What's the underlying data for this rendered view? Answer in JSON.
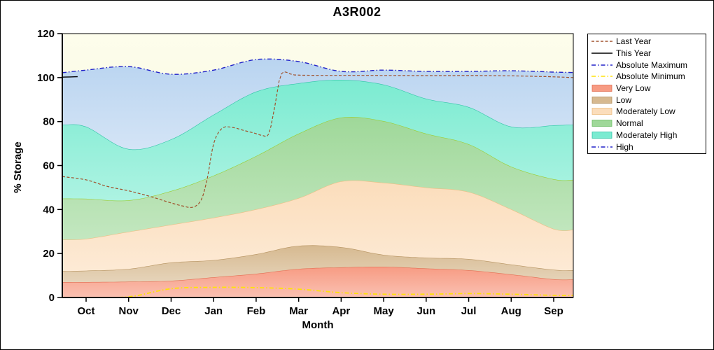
{
  "chart_data": {
    "type": "area",
    "title": "A3R002",
    "xlabel": "Month",
    "ylabel": "% Storage",
    "ylim": [
      0,
      120
    ],
    "yticks": [
      0,
      20,
      40,
      60,
      80,
      100,
      120
    ],
    "categories": [
      "Oct",
      "Nov",
      "Dec",
      "Jan",
      "Feb",
      "Mar",
      "Apr",
      "May",
      "Jun",
      "Jul",
      "Aug",
      "Sep"
    ],
    "plot_bg_top": "#FDFDEC",
    "plot_bg_bottom": "#F5F5D2",
    "band_x": [
      -0.56,
      0,
      1,
      2,
      3,
      4,
      5,
      6,
      7,
      8,
      9,
      10,
      11,
      11.46
    ],
    "bands": [
      {
        "name": "Very Low",
        "fill": "#F79B83",
        "edge": "#E26E52",
        "top": [
          7,
          7,
          7.2,
          7.6,
          9.2,
          10.8,
          13,
          13.7,
          14,
          13.2,
          12.4,
          10.5,
          8.3,
          8.2
        ]
      },
      {
        "name": "Low",
        "fill": "#D6B990",
        "edge": "#B5925F",
        "top": [
          12,
          12.2,
          13,
          15.9,
          17,
          19.7,
          23.5,
          22.9,
          19.4,
          18.1,
          17.5,
          15,
          12.6,
          12.4
        ]
      },
      {
        "name": "Moderately Low",
        "fill": "#FBDDBB",
        "edge": "#EDBE84",
        "top": [
          26.3,
          26.7,
          29.9,
          33.1,
          36.3,
          40.1,
          45.2,
          52.8,
          52.2,
          50,
          48,
          40.1,
          31.2,
          30.8
        ]
      },
      {
        "name": "Normal",
        "fill": "#9FD899",
        "edge": "#9ACD32",
        "top": [
          45,
          44.9,
          44.2,
          48.4,
          55.4,
          64.3,
          74.5,
          81.8,
          80.2,
          74.5,
          69.7,
          59.5,
          53.8,
          53.5
        ]
      },
      {
        "name": "Moderately High",
        "fill": "#7BEBD1",
        "edge": "#2FC3A6",
        "top": [
          78.5,
          77.7,
          67.5,
          71.9,
          83.1,
          93.6,
          97.4,
          99,
          96.8,
          90.4,
          86.6,
          77.7,
          78.3,
          78.6
        ]
      },
      {
        "name": "High",
        "fill": "#B9D4F0",
        "edge": "none",
        "top": [
          102.2,
          103.4,
          105,
          101.5,
          103.4,
          108.2,
          107.3,
          102.8,
          103.4,
          102.8,
          102.8,
          103.1,
          102.5,
          102.3
        ]
      }
    ],
    "lines": [
      {
        "name": "Absolute Minimum",
        "color": "#FFE206",
        "dash": "6 3 1.5 3",
        "width": 1.8,
        "x": [
          -0.56,
          0,
          1,
          2,
          3,
          4,
          5,
          6,
          7,
          8,
          9,
          10,
          11,
          11.46
        ],
        "v": [
          0,
          0,
          0.3,
          4,
          4.6,
          4.5,
          3.8,
          2.2,
          1.5,
          1.5,
          1.8,
          1.5,
          1,
          1
        ]
      },
      {
        "name": "Last Year",
        "color": "#A0522D",
        "dash": "4 2.5",
        "width": 1.2,
        "x": [
          -0.56,
          0,
          0.5,
          1,
          1.5,
          2,
          2.3,
          2.5,
          2.7,
          2.85,
          3,
          3.2,
          3.45,
          3.7,
          3.95,
          4.15,
          4.3,
          4.45,
          4.6,
          4.9,
          5.5,
          6.5,
          8,
          9.5,
          10.7,
          11.46
        ],
        "v": [
          55,
          53.5,
          50.5,
          48.5,
          46,
          43,
          41.5,
          41,
          44,
          54,
          70,
          77,
          77.3,
          76,
          74.8,
          73.7,
          74.5,
          88,
          101.8,
          101.2,
          101,
          101,
          100.9,
          100.9,
          100.5,
          100
        ]
      },
      {
        "name": "This Year",
        "color": "#000000",
        "dash": "",
        "width": 1.4,
        "x": [
          -0.56,
          -0.2
        ],
        "v": [
          100.2,
          100.4
        ]
      },
      {
        "name": "Absolute Maximum",
        "color": "#2121C8",
        "dash": "6 3 1.5 3",
        "width": 1.4,
        "x": [
          -0.56,
          0,
          1,
          2,
          3,
          4,
          5,
          6,
          7,
          8,
          9,
          10,
          11,
          11.46
        ],
        "v": [
          102.2,
          103.4,
          105,
          101.5,
          103.4,
          108.2,
          107.3,
          102.8,
          103.4,
          102.8,
          102.8,
          103.1,
          102.5,
          102.3
        ]
      }
    ]
  },
  "legend": {
    "items": [
      {
        "label": "Last Year",
        "marker": "line",
        "color": "#A0522D",
        "dash": "4 2.5"
      },
      {
        "label": "This Year",
        "marker": "line",
        "color": "#000000",
        "dash": ""
      },
      {
        "label": "Absolute Maximum",
        "marker": "line",
        "color": "#2121C8",
        "dash": "6 3 1.5 3"
      },
      {
        "label": "Absolute Minimum",
        "marker": "line",
        "color": "#FFE206",
        "dash": "6 3 1.5 3"
      },
      {
        "label": "Very Low",
        "marker": "box",
        "color": "#F79B83",
        "edge": "#E26E52"
      },
      {
        "label": "Low",
        "marker": "box",
        "color": "#D6B990",
        "edge": "#B5925F"
      },
      {
        "label": "Moderately Low",
        "marker": "box",
        "color": "#FBDDBB",
        "edge": "#EDBE84"
      },
      {
        "label": "Normal",
        "marker": "box",
        "color": "#9FD899",
        "edge": "#6DBE66"
      },
      {
        "label": "Moderately High",
        "marker": "box",
        "color": "#7BEBD1",
        "edge": "#2FC3A6"
      },
      {
        "label": "High",
        "marker": "line",
        "color": "#2121C8",
        "dash": "6 3 1.5 3"
      }
    ]
  }
}
